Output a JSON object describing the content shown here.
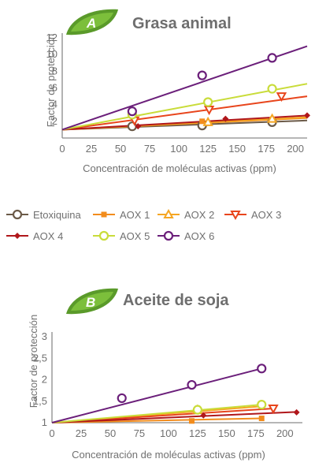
{
  "legend": [
    {
      "key": "etox",
      "label": "Etoxiquina",
      "color": "#6b5a48",
      "marker": "circle-open"
    },
    {
      "key": "aox1",
      "label": "AOX 1",
      "color": "#f28c1c",
      "marker": "square"
    },
    {
      "key": "aox2",
      "label": "AOX 2",
      "color": "#f5a623",
      "marker": "triangle-up-open"
    },
    {
      "key": "aox3",
      "label": "AOX 3",
      "color": "#e8451c",
      "marker": "triangle-down-open"
    },
    {
      "key": "aox4",
      "label": "AOX 4",
      "color": "#b0171b",
      "marker": "diamond"
    },
    {
      "key": "aox5",
      "label": "AOX 5",
      "color": "#c9dc3a",
      "marker": "circle-open"
    },
    {
      "key": "aox6",
      "label": "AOX 6",
      "color": "#6b1f7a",
      "marker": "circle-open"
    }
  ],
  "chart_data": [
    {
      "type": "scatter",
      "badge": "A",
      "title": "Grasa animal",
      "xlabel": "Concentración de moléculas activas (ppm)",
      "ylabel": "Factor de protección",
      "xlim": [
        0,
        210
      ],
      "ylim": [
        0,
        12
      ],
      "x_ticks": [
        0,
        25,
        50,
        75,
        100,
        125,
        150,
        175,
        200
      ],
      "y_ticks": [
        2,
        4,
        6,
        8,
        10,
        12
      ],
      "y_tick_labels": [
        "2",
        "4",
        "6",
        "8",
        "10",
        "12"
      ],
      "series": [
        {
          "key": "etox",
          "points": [
            [
              60,
              1.4
            ],
            [
              120,
              1.5
            ],
            [
              180,
              1.9
            ]
          ],
          "line": [
            [
              0,
              1.0
            ],
            [
              210,
              2.1
            ]
          ]
        },
        {
          "key": "aox1",
          "points": [
            [
              120,
              2.0
            ],
            [
              180,
              2.2
            ]
          ],
          "line": [
            [
              0,
              1.0
            ],
            [
              210,
              2.4
            ]
          ]
        },
        {
          "key": "aox2",
          "points": [
            [
              125,
              1.9
            ],
            [
              180,
              2.3
            ]
          ],
          "line": [
            [
              0,
              1.0
            ],
            [
              210,
              2.5
            ]
          ]
        },
        {
          "key": "aox3",
          "points": [
            [
              62,
              2.1
            ],
            [
              126,
              3.4
            ],
            [
              188,
              5.0
            ]
          ],
          "line": [
            [
              0,
              1.0
            ],
            [
              210,
              5.0
            ]
          ]
        },
        {
          "key": "aox4",
          "points": [
            [
              65,
              1.4
            ],
            [
              140,
              2.3
            ],
            [
              210,
              2.7
            ]
          ],
          "line": [
            [
              0,
              1.0
            ],
            [
              210,
              2.7
            ]
          ]
        },
        {
          "key": "aox5",
          "points": [
            [
              60,
              2.8
            ],
            [
              125,
              4.3
            ],
            [
              180,
              5.9
            ]
          ],
          "line": [
            [
              0,
              1.0
            ],
            [
              210,
              6.5
            ]
          ]
        },
        {
          "key": "aox6",
          "points": [
            [
              60,
              3.2
            ],
            [
              120,
              7.5
            ],
            [
              180,
              9.6
            ]
          ],
          "line": [
            [
              0,
              1.0
            ],
            [
              210,
              11.0
            ]
          ]
        }
      ]
    },
    {
      "type": "scatter",
      "badge": "B",
      "title": "Aceite de soja",
      "xlabel": "Concentración de moléculas activas (ppm)",
      "ylabel": "Factor de protección",
      "xlim": [
        0,
        215
      ],
      "ylim": [
        1,
        3
      ],
      "x_ticks": [
        0,
        25,
        50,
        75,
        100,
        125,
        150,
        175,
        200
      ],
      "y_ticks": [
        1,
        1.5,
        2,
        2.5,
        3
      ],
      "y_tick_labels": [
        "1",
        "1,5",
        "2",
        "2,5",
        "3"
      ],
      "series": [
        {
          "key": "aox1",
          "points": [
            [
              120,
              1.04
            ],
            [
              180,
              1.1
            ]
          ],
          "line": [
            [
              0,
              1.0
            ],
            [
              180,
              1.1
            ]
          ]
        },
        {
          "key": "aox2",
          "points": [
            [
              125,
              1.3
            ]
          ],
          "line": [
            [
              0,
              1.0
            ],
            [
              180,
              1.38
            ]
          ]
        },
        {
          "key": "aox3",
          "points": [
            [
              190,
              1.33
            ]
          ],
          "line": [
            [
              0,
              1.0
            ],
            [
              190,
              1.33
            ]
          ]
        },
        {
          "key": "aox4",
          "points": [
            [
              130,
              1.17
            ],
            [
              210,
              1.24
            ]
          ],
          "line": [
            [
              0,
              1.0
            ],
            [
              210,
              1.25
            ]
          ]
        },
        {
          "key": "aox5",
          "points": [
            [
              125,
              1.3
            ],
            [
              180,
              1.42
            ]
          ],
          "line": [
            [
              0,
              1.0
            ],
            [
              180,
              1.42
            ]
          ]
        },
        {
          "key": "aox6",
          "points": [
            [
              60,
              1.57
            ],
            [
              120,
              1.88
            ],
            [
              180,
              2.26
            ]
          ],
          "line": [
            [
              0,
              1.0
            ],
            [
              180,
              2.26
            ]
          ]
        }
      ]
    }
  ]
}
